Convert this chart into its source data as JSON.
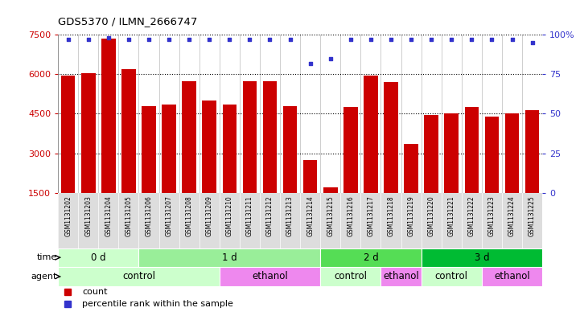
{
  "title": "GDS5370 / ILMN_2666747",
  "samples": [
    "GSM1131202",
    "GSM1131203",
    "GSM1131204",
    "GSM1131205",
    "GSM1131206",
    "GSM1131207",
    "GSM1131208",
    "GSM1131209",
    "GSM1131210",
    "GSM1131211",
    "GSM1131212",
    "GSM1131213",
    "GSM1131214",
    "GSM1131215",
    "GSM1131216",
    "GSM1131217",
    "GSM1131218",
    "GSM1131219",
    "GSM1131220",
    "GSM1131221",
    "GSM1131222",
    "GSM1131223",
    "GSM1131224",
    "GSM1131225"
  ],
  "counts": [
    5950,
    6050,
    7350,
    6200,
    4800,
    4850,
    5750,
    5000,
    4850,
    5750,
    5750,
    4800,
    2750,
    1700,
    4750,
    5950,
    5700,
    3350,
    4450,
    4500,
    4750,
    4400,
    4500,
    4650
  ],
  "percentiles": [
    97,
    97,
    98,
    97,
    97,
    97,
    97,
    97,
    97,
    97,
    97,
    97,
    82,
    85,
    97,
    97,
    97,
    97,
    97,
    97,
    97,
    97,
    97,
    95
  ],
  "bar_color": "#cc0000",
  "percentile_color": "#3333cc",
  "ylim_left": [
    1500,
    7500
  ],
  "ylim_right": [
    0,
    100
  ],
  "yticks_left": [
    1500,
    3000,
    4500,
    6000,
    7500
  ],
  "yticks_right": [
    0,
    25,
    50,
    75,
    100
  ],
  "grid_values": [
    3000,
    4500,
    6000,
    7500
  ],
  "time_groups": [
    {
      "label": "0 d",
      "start": 0,
      "end": 3,
      "color": "#ccffcc"
    },
    {
      "label": "1 d",
      "start": 4,
      "end": 12,
      "color": "#99ee99"
    },
    {
      "label": "2 d",
      "start": 13,
      "end": 17,
      "color": "#55dd55"
    },
    {
      "label": "3 d",
      "start": 18,
      "end": 23,
      "color": "#00bb33"
    }
  ],
  "agent_groups": [
    {
      "label": "control",
      "start": 0,
      "end": 7,
      "color": "#ccffcc"
    },
    {
      "label": "ethanol",
      "start": 8,
      "end": 12,
      "color": "#ee88ee"
    },
    {
      "label": "control",
      "start": 13,
      "end": 15,
      "color": "#ccffcc"
    },
    {
      "label": "ethanol",
      "start": 16,
      "end": 17,
      "color": "#ee88ee"
    },
    {
      "label": "control",
      "start": 18,
      "end": 20,
      "color": "#ccffcc"
    },
    {
      "label": "ethanol",
      "start": 21,
      "end": 23,
      "color": "#ee88ee"
    }
  ],
  "label_bg_color": "#dddddd",
  "legend_items": [
    {
      "label": "count",
      "color": "#cc0000"
    },
    {
      "label": "percentile rank within the sample",
      "color": "#3333cc"
    }
  ],
  "bar_width": 0.7
}
